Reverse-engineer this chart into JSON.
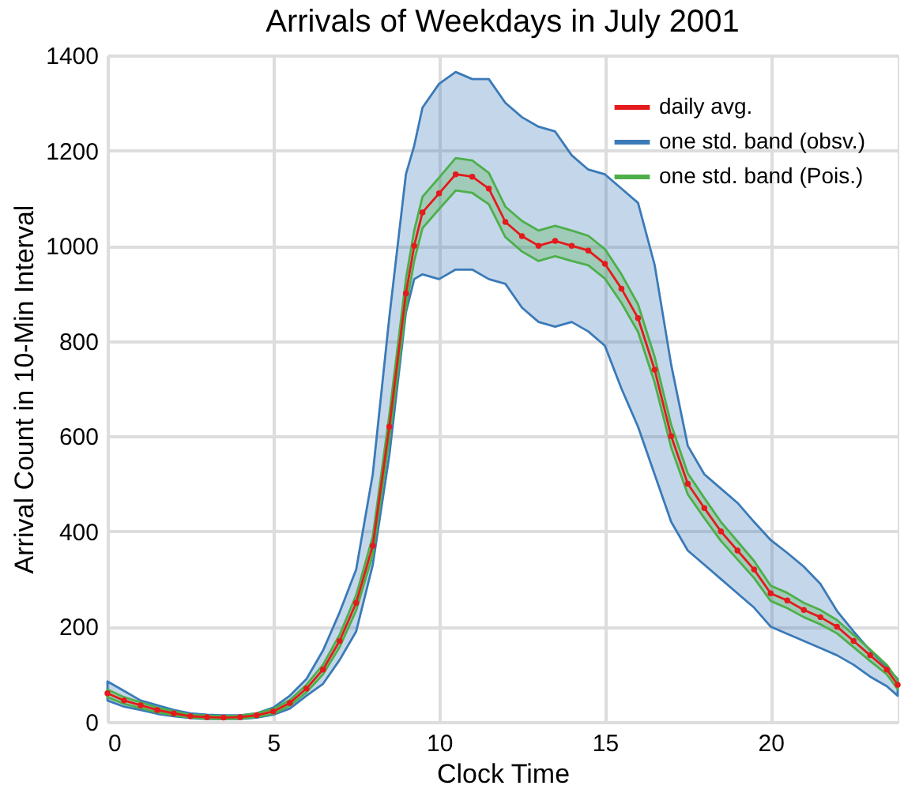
{
  "chart_data": {
    "type": "line",
    "title": "Arrivals of Weekdays in July 2001",
    "xlabel": "Clock Time",
    "ylabel": "Arrival Count in 10-Min Interval",
    "x": [
      0,
      0.5,
      1,
      1.5,
      2,
      2.5,
      3,
      3.5,
      4,
      4.5,
      5,
      5.5,
      6,
      6.5,
      7,
      7.5,
      8,
      8.5,
      9,
      9.25,
      9.5,
      10,
      10.5,
      11,
      11.5,
      12,
      12.5,
      13,
      13.5,
      14,
      14.5,
      15,
      15.5,
      16,
      16.5,
      17,
      17.5,
      18,
      18.5,
      19,
      19.5,
      20,
      20.5,
      21,
      21.5,
      22,
      22.5,
      23,
      23.5,
      23.83
    ],
    "series": [
      {
        "name": "daily avg.",
        "color": "#e41a1c",
        "marker": "circle",
        "values": [
          60,
          45,
          35,
          25,
          18,
          12,
          10,
          9,
          10,
          14,
          22,
          40,
          70,
          110,
          170,
          250,
          370,
          620,
          900,
          1000,
          1070,
          1110,
          1150,
          1145,
          1120,
          1050,
          1020,
          1000,
          1010,
          1000,
          990,
          962,
          910,
          848,
          740,
          600,
          500,
          449,
          400,
          360,
          320,
          270,
          255,
          235,
          220,
          200,
          170,
          140,
          110,
          78
        ]
      },
      {
        "name": "one std. band (obsv.)",
        "color": "#3a7ab8",
        "values": [
          null,
          null,
          null,
          null,
          null,
          null,
          null,
          null,
          null,
          null,
          null,
          null,
          null,
          null,
          null,
          null,
          null,
          null,
          null,
          null,
          null,
          null,
          null,
          null,
          null,
          null,
          null,
          null,
          null,
          null,
          null,
          null,
          null,
          null,
          null,
          null,
          null,
          null,
          null,
          null,
          null,
          null,
          null,
          null,
          null,
          null,
          null,
          null,
          null,
          null
        ],
        "upper": [
          85,
          65,
          45,
          35,
          25,
          18,
          15,
          14,
          14,
          18,
          30,
          55,
          90,
          150,
          230,
          320,
          520,
          850,
          1150,
          1210,
          1290,
          1340,
          1365,
          1350,
          1350,
          1300,
          1270,
          1250,
          1240,
          1190,
          1160,
          1150,
          1120,
          1090,
          960,
          750,
          580,
          520,
          490,
          460,
          420,
          382,
          355,
          326,
          290,
          233,
          190,
          150,
          115,
          90
        ],
        "lower": [
          45,
          32,
          25,
          17,
          12,
          8,
          6,
          6,
          6,
          9,
          15,
          28,
          55,
          80,
          130,
          190,
          330,
          560,
          860,
          930,
          940,
          930,
          950,
          950,
          930,
          920,
          870,
          840,
          830,
          840,
          820,
          790,
          700,
          620,
          520,
          420,
          360,
          330,
          300,
          270,
          240,
          200,
          185,
          170,
          155,
          140,
          120,
          95,
          75,
          55
        ]
      },
      {
        "name": "one std. band (Pois.)",
        "color": "#4daf4a",
        "values": [
          null,
          null,
          null,
          null,
          null,
          null,
          null,
          null,
          null,
          null,
          null,
          null,
          null,
          null,
          null,
          null,
          null,
          null,
          null,
          null,
          null,
          null,
          null,
          null,
          null,
          null,
          null,
          null,
          null,
          null,
          null,
          null,
          null,
          null,
          null,
          null,
          null,
          null,
          null,
          null,
          null,
          null,
          null,
          null,
          null,
          null,
          null,
          null,
          null,
          null
        ],
        "upper": [
          68,
          52,
          41,
          30,
          22,
          15,
          13,
          12,
          13,
          18,
          27,
          46,
          78,
          120,
          183,
          266,
          389,
          645,
          930,
          1032,
          1103,
          1143,
          1184,
          1179,
          1153,
          1082,
          1052,
          1032,
          1042,
          1032,
          1021,
          993,
          940,
          877,
          767,
          624,
          522,
          470,
          420,
          379,
          338,
          286,
          271,
          250,
          235,
          214,
          183,
          152,
          120,
          87
        ],
        "lower": [
          52,
          38,
          29,
          20,
          14,
          9,
          7,
          6,
          7,
          10,
          17,
          34,
          62,
          100,
          157,
          234,
          351,
          595,
          870,
          968,
          1037,
          1077,
          1116,
          1111,
          1087,
          1018,
          988,
          968,
          978,
          968,
          959,
          931,
          880,
          819,
          713,
          576,
          478,
          428,
          380,
          341,
          302,
          254,
          239,
          220,
          205,
          186,
          157,
          128,
          100,
          69
        ]
      }
    ],
    "xlim": [
      0,
      23.83
    ],
    "xticks": [
      0,
      5,
      10,
      15,
      20
    ],
    "ylim": [
      0,
      1400
    ],
    "yticks": [
      0,
      200,
      400,
      600,
      800,
      {
        "value": 1000,
        "label": "1000"
      },
      {
        "value": 1200,
        "label": "1200"
      },
      {
        "value": 1400,
        "label": "1400"
      }
    ],
    "grid": true,
    "legend": "top right"
  }
}
